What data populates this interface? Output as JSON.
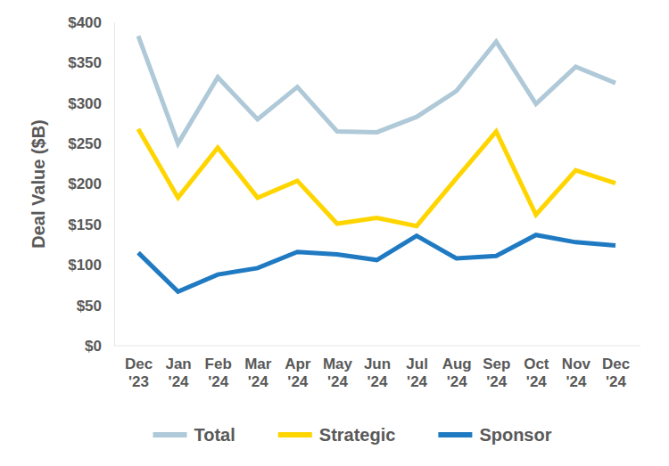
{
  "chart_data": {
    "type": "line",
    "y_label": "Deal Value ($B)",
    "categories": [
      "Dec '23",
      "Jan '24",
      "Feb '24",
      "Mar '24",
      "Apr '24",
      "May '24",
      "Jun '24",
      "Jul '24",
      "Aug '24",
      "Sep '24",
      "Oct '24",
      "Nov '24",
      "Dec '24"
    ],
    "series": [
      {
        "name": "Total",
        "color": "#afc9d8",
        "values": [
          383,
          250,
          332,
          280,
          320,
          265,
          264,
          283,
          315,
          376,
          299,
          345,
          325
        ]
      },
      {
        "name": "Strategic",
        "color": "#ffd500",
        "values": [
          268,
          183,
          245,
          183,
          204,
          151,
          158,
          148,
          207,
          265,
          162,
          217,
          201
        ]
      },
      {
        "name": "Sponsor",
        "color": "#1f7ac2",
        "values": [
          115,
          67,
          88,
          96,
          116,
          113,
          106,
          136,
          108,
          111,
          137,
          128,
          124
        ]
      }
    ],
    "ylim": [
      0,
      400
    ],
    "yticks": [
      {
        "value": 0,
        "label": "$0"
      },
      {
        "value": 50,
        "label": "$50"
      },
      {
        "value": 100,
        "label": "$100"
      },
      {
        "value": 150,
        "label": "$150"
      },
      {
        "value": 200,
        "label": "$200"
      },
      {
        "value": 250,
        "label": "$250"
      },
      {
        "value": 300,
        "label": "$300"
      },
      {
        "value": 350,
        "label": "$350"
      },
      {
        "value": 400,
        "label": "$400"
      }
    ],
    "grid": false,
    "legend": "bottom"
  }
}
